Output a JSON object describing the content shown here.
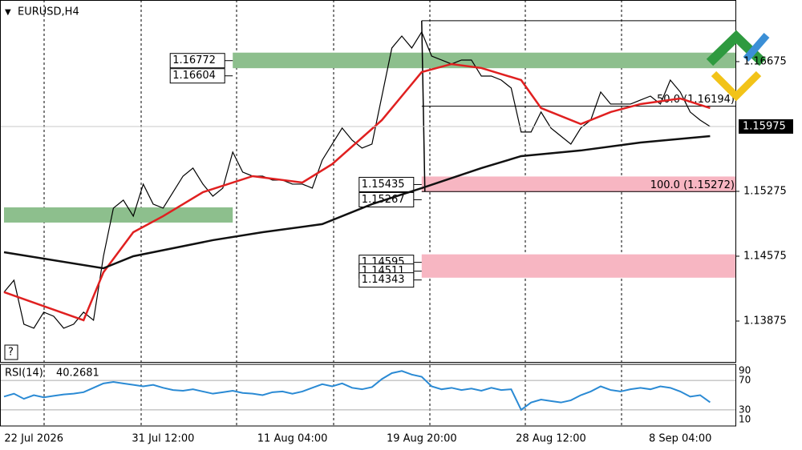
{
  "chart_data": [
    {
      "type": "line",
      "symbol": "EURUSD,H4",
      "categories": [
        null,
        null,
        null,
        "22 Jul 2026",
        null,
        null,
        null,
        null,
        null,
        null,
        null,
        null,
        null,
        null,
        null,
        null,
        "31 Jul 12:00",
        null,
        null,
        null,
        null,
        null,
        null,
        null,
        null,
        null,
        null,
        null,
        null,
        "11 Aug 04:00",
        null,
        null,
        null,
        null,
        null,
        null,
        null,
        null,
        null,
        null,
        null,
        null,
        "19 Aug 20:00",
        null,
        null,
        null,
        null,
        null,
        null,
        null,
        null,
        null,
        null,
        null,
        null,
        "28 Aug 12:00",
        null,
        null,
        null,
        null,
        null,
        null,
        null,
        null,
        null,
        null,
        null,
        null,
        "8 Sep 04:00",
        null,
        null,
        null
      ],
      "ylim": [
        1.13434,
        1.1734
      ],
      "yticks": [
        1.13875,
        1.14575,
        1.15275,
        1.16675
      ],
      "current_price": 1.15975,
      "series": [
        {
          "color": "#000000",
          "values": [
            1.14187,
            1.14316,
            1.13841,
            1.13798,
            1.13971,
            1.13927,
            1.13798,
            1.13841,
            1.13971,
            1.13884,
            1.14575,
            1.15094,
            1.1518,
            1.15007,
            1.15353,
            1.15137,
            1.15094,
            1.15267,
            1.15439,
            1.15526,
            1.15353,
            1.15223,
            1.1531,
            1.15699,
            1.15483,
            1.15439,
            1.15439,
            1.15396,
            1.15396,
            1.15353,
            1.15353,
            1.1531,
            1.15612,
            1.15785,
            1.15958,
            1.15828,
            1.15742,
            1.15785,
            1.16303,
            1.16822,
            1.16951,
            1.16822,
            1.16995,
            1.16735,
            1.16692,
            1.16649,
            1.16692,
            1.16692,
            1.16519,
            1.16519,
            1.16476,
            1.1639,
            1.15915,
            1.15915,
            1.16131,
            1.15958,
            1.15871,
            1.15785,
            1.15958,
            1.16044,
            1.16347,
            1.16217,
            1.16217,
            1.16217,
            1.1626,
            1.16303,
            1.16217,
            1.16476,
            1.16347,
            1.16131,
            1.16044,
            1.15975
          ]
        },
        {
          "color": "#e02020",
          "x": [
            0,
            8,
            10,
            13,
            16,
            20,
            25,
            30,
            33,
            38,
            42,
            45,
            48,
            52,
            54,
            58,
            61,
            64,
            68,
            71
          ],
          "values": [
            1.14187,
            1.13884,
            1.14402,
            1.14834,
            1.15007,
            1.15266,
            1.15439,
            1.1537,
            1.15569,
            1.16044,
            1.16562,
            1.16649,
            1.16606,
            1.16476,
            1.16174,
            1.16001,
            1.16131,
            1.16217,
            1.16277,
            1.16174
          ]
        },
        {
          "color": "#111111",
          "x": [
            0,
            10,
            13,
            21,
            26,
            32,
            37,
            42,
            48,
            52,
            58,
            64,
            71
          ],
          "values": [
            1.14618,
            1.14445,
            1.14575,
            1.14748,
            1.14834,
            1.14921,
            1.15137,
            1.1531,
            1.15526,
            1.15655,
            1.15716,
            1.15802,
            1.15871
          ]
        }
      ],
      "zones": [
        {
          "low": 1.16604,
          "high": 1.16772,
          "color": "#8dbf8d",
          "start": 23,
          "labels": [
            "1.16772",
            "1.16604"
          ]
        },
        {
          "low": 1.14938,
          "high": 1.15102,
          "color": "#8dbf8d",
          "start": 0,
          "end": 23
        },
        {
          "low": 1.15267,
          "high": 1.15435,
          "color": "#f7b6c2",
          "start": 42,
          "labels": [
            "1.15435",
            "1.15267"
          ]
        },
        {
          "low": 1.14343,
          "high": 1.14595,
          "color": "#f7b6c2",
          "start": 42,
          "labels": [
            "1.14595",
            "1.14511",
            "1.14343"
          ]
        }
      ],
      "fib": {
        "top": 1.17116,
        "start": 42,
        "levels": [
          {
            "value": 1.16194,
            "label": "50.0 (1.16194)"
          },
          {
            "value": 1.15272,
            "label": "100.0 (1.15272)"
          }
        ]
      }
    },
    {
      "type": "line",
      "title": "RSI(14)",
      "color": "#2a8ad4",
      "ylim": [
        8,
        92
      ],
      "yticks": [
        10,
        30,
        70,
        90
      ],
      "values": [
        48,
        52,
        45,
        50,
        47,
        49,
        51,
        52,
        54,
        60,
        66,
        68,
        66,
        64,
        62,
        64,
        60,
        57,
        56,
        58,
        55,
        52,
        54,
        56,
        53,
        52,
        50,
        54,
        55,
        52,
        55,
        60,
        65,
        62,
        66,
        60,
        58,
        61,
        72,
        80,
        83,
        78,
        75,
        62,
        58,
        60,
        57,
        59,
        56,
        60,
        57,
        58,
        30,
        40,
        44,
        42,
        40,
        43,
        50,
        55,
        62,
        57,
        55,
        58,
        60,
        58,
        62,
        60,
        55,
        48,
        50,
        40.2681
      ]
    }
  ]
}
